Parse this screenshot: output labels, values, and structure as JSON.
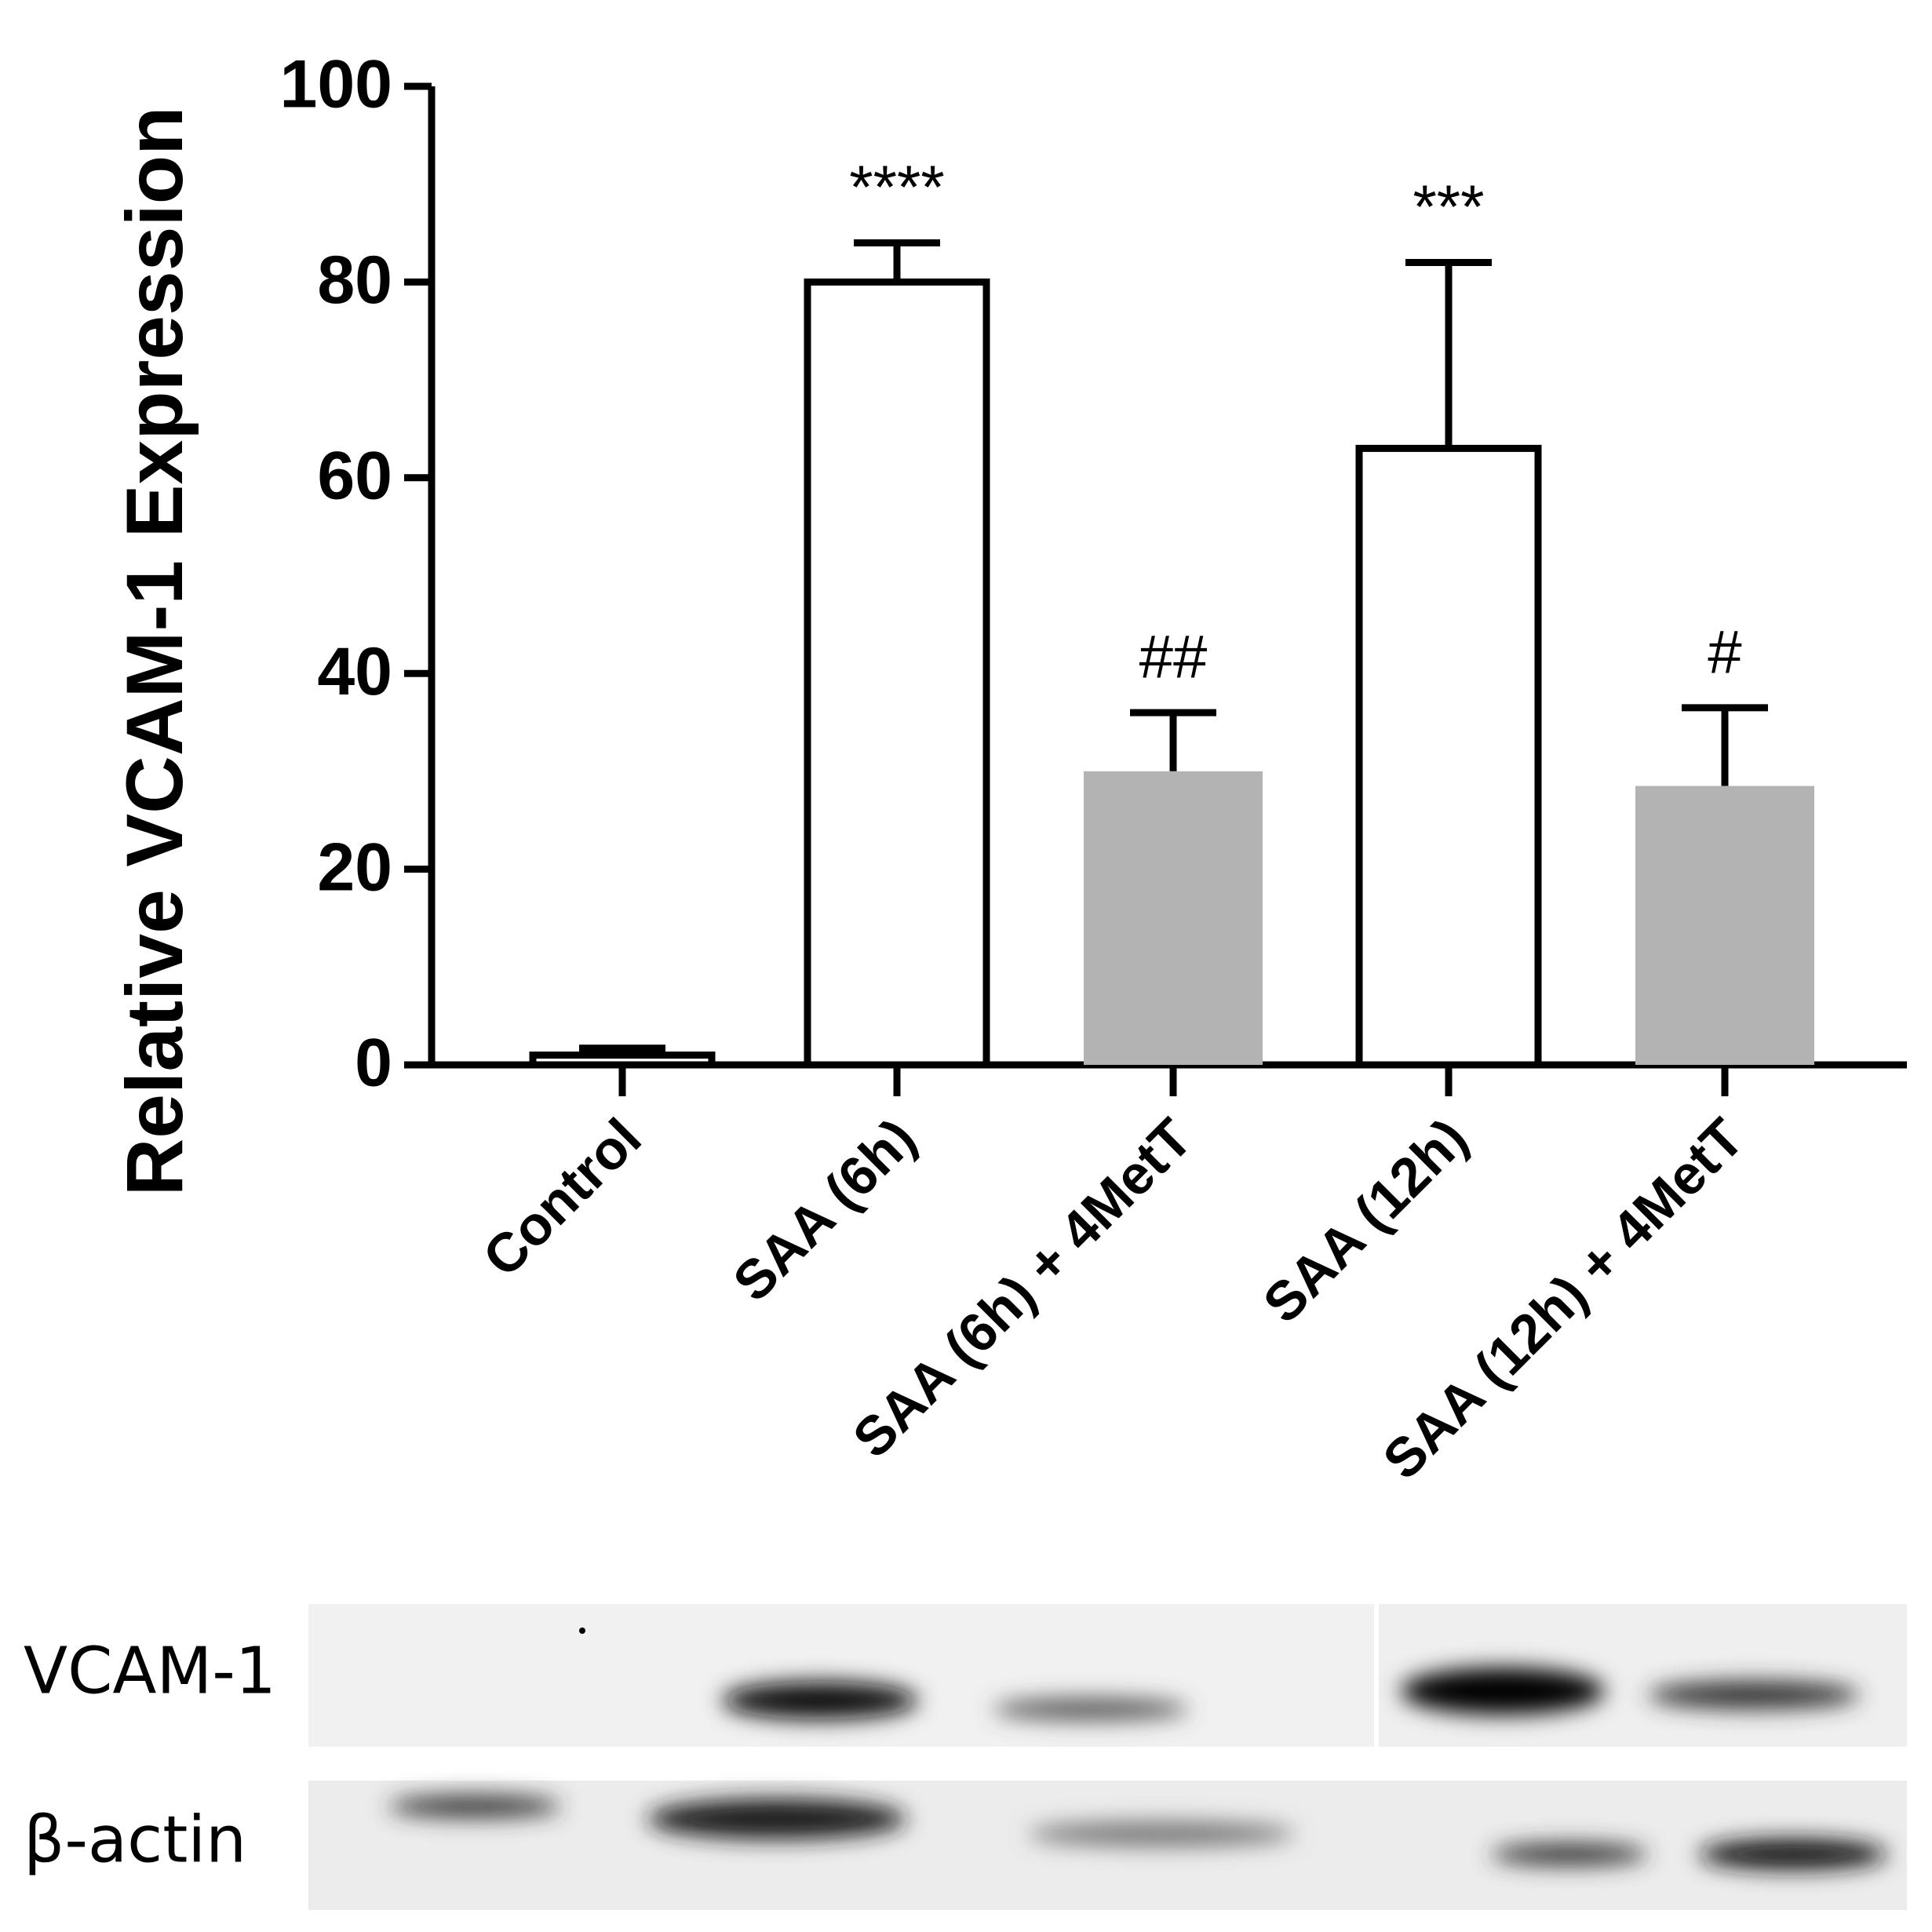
{
  "chart_data": {
    "type": "bar",
    "y_label": "Relative VCAM-1 Expression",
    "categories": [
      "Control",
      "SAA (6h)",
      "SAA (6h) + 4MetT",
      "SAA (12h)",
      "SAA (12h) + 4MetT"
    ],
    "values": [
      1,
      80,
      30,
      63,
      28.5
    ],
    "errors": [
      0.7,
      4,
      6,
      19,
      8
    ],
    "colors": [
      "#ffffff",
      "#ffffff",
      "#b3b3b3",
      "#ffffff",
      "#b3b3b3"
    ],
    "annotations": [
      null,
      "****",
      "##",
      "***",
      "#"
    ],
    "ylim": [
      0,
      100
    ],
    "yticks": [
      0,
      20,
      40,
      60,
      80,
      100
    ],
    "grid": false
  },
  "blot": {
    "rows": [
      "VCAM-1",
      "β-actin"
    ]
  }
}
